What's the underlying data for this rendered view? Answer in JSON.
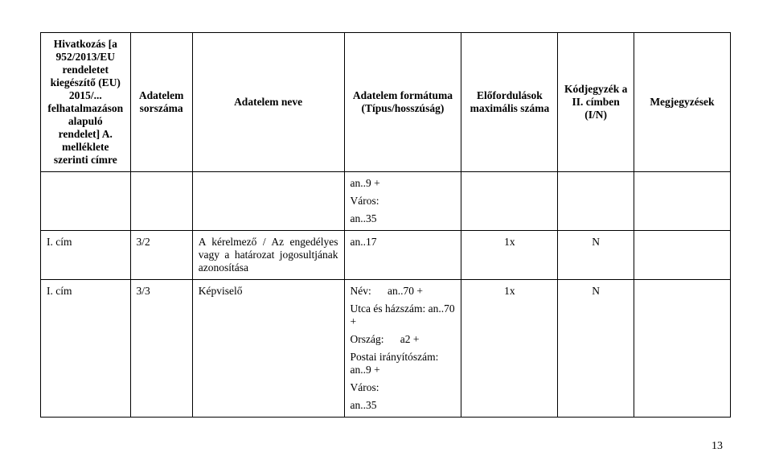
{
  "headers": {
    "col1": "Hivatkozás [a 952/2013/EU rendeletet kiegészítő (EU) 2015/... felhatalmazáson alapuló rendelet] A. melléklete szerinti címre",
    "col2": "Adatelem sorszáma",
    "col3": "Adatelem neve",
    "col4": "Adatelem formátuma (Típus/hosszúság)",
    "col5": "Előfordulások maximális száma",
    "col6": "Kódjegyzék a II. címben (I/N)",
    "col7": "Megjegyzések"
  },
  "row0": {
    "fmt1": "an..9 +",
    "fmt2a": "Város:",
    "fmt2b": "an..35"
  },
  "row1": {
    "cim": "I. cím",
    "sor": "3/2",
    "nev": "A kérelmező / Az engedélyes vagy a határozat jogosultjának azonosítása",
    "fmt": "an..17",
    "elo": "1x",
    "kod": "N"
  },
  "row2": {
    "cim": "I. cím",
    "sor": "3/3",
    "nev": "Képviselő",
    "fmt1": "Név:      an..70 +",
    "fmt2": "Utca és házszám: an..70 +",
    "fmt3": "Ország:      a2 +",
    "fmt4": "Postai irányítószám: an..9 +",
    "fmt5a": "Város:",
    "fmt5b": "an..35",
    "elo": "1x",
    "kod": "N"
  },
  "pageno": "13"
}
